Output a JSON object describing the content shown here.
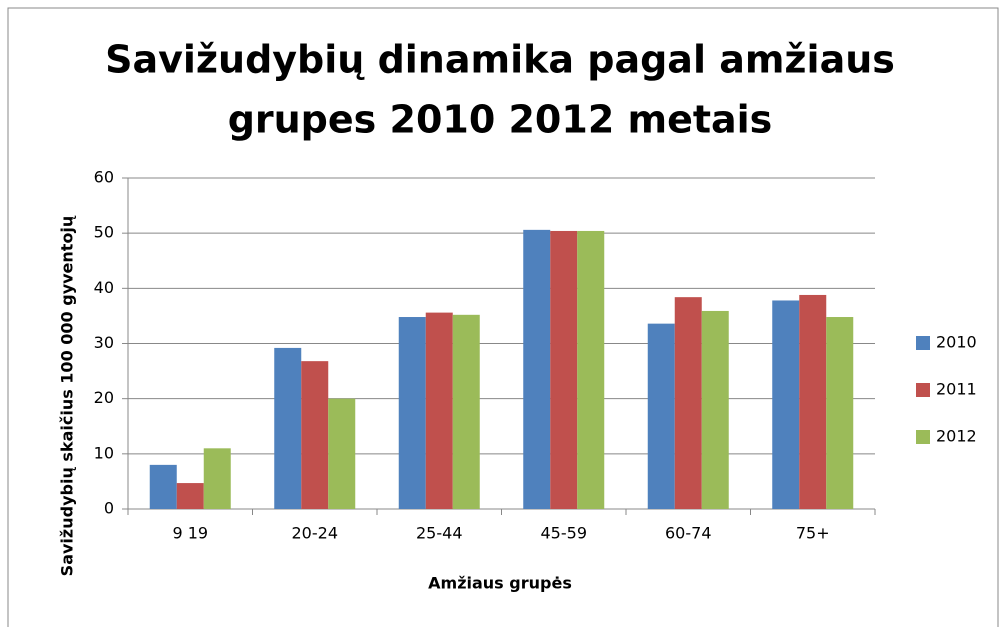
{
  "chart_data": {
    "type": "bar",
    "title": [
      "Savižudybių dinamika pagal amžiaus",
      "grupes 2010 2012 metais"
    ],
    "x_label": "Amžiaus grupės",
    "y_label": "Savižudybių skaičius 100 000 gyventojų",
    "categories": [
      "9 19",
      "20-24",
      "25-44",
      "45-59",
      "60-74",
      "75+"
    ],
    "series": [
      {
        "name": "2010",
        "color": "#4f81bd",
        "values": [
          8.0,
          29.2,
          34.8,
          50.6,
          33.6,
          37.8
        ]
      },
      {
        "name": "2011",
        "color": "#c0504d",
        "values": [
          4.7,
          26.8,
          35.6,
          50.4,
          38.4,
          38.8
        ]
      },
      {
        "name": "2012",
        "color": "#9bbb59",
        "values": [
          11.0,
          20.0,
          35.2,
          50.4,
          35.9,
          34.8
        ]
      }
    ],
    "ylim": [
      0,
      60
    ],
    "yticks": [
      0,
      10,
      20,
      30,
      40,
      50,
      60
    ],
    "grid": true,
    "legend": "right"
  }
}
